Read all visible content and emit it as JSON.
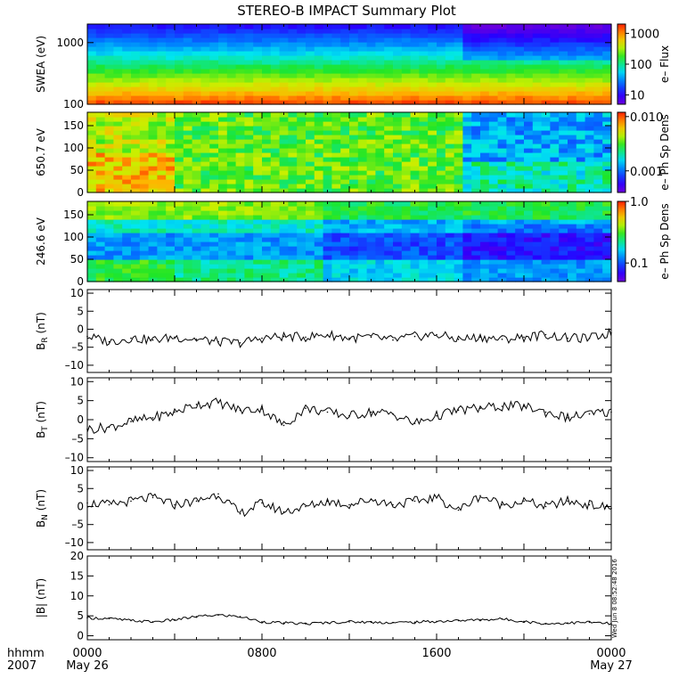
{
  "title": "STEREO-B IMPACT Summary Plot",
  "time_axis": {
    "labels": [
      {
        "hhmm": "0000",
        "date": "May 26",
        "frac": 0
      },
      {
        "hhmm": "0800",
        "date": "",
        "frac": 0.3333
      },
      {
        "hhmm": "1600",
        "date": "",
        "frac": 0.6667
      },
      {
        "hhmm": "0000",
        "date": "May 27",
        "frac": 1
      }
    ],
    "corner_top": "hhmm",
    "corner_bottom": "2007"
  },
  "footer_stamp": "Wed Jun  8 08:52:48 2016",
  "colors": {
    "axis": "#000000",
    "line": "#000000",
    "background": "#ffffff"
  },
  "chart_data": [
    {
      "type": "heatmap",
      "id": "swea",
      "ylabel": "SWEA (eV)",
      "yscale": "log",
      "ylim": [
        100,
        2000
      ],
      "yticks": [
        {
          "v": 100,
          "label": "100"
        },
        {
          "v": 1000,
          "label": "1000"
        }
      ],
      "colorbar": {
        "label": "e– Flux",
        "scale": "log",
        "range": [
          5,
          2000
        ],
        "ticks": [
          {
            "v": 10,
            "label": "10"
          },
          {
            "v": 100,
            "label": "100"
          },
          {
            "v": 1000,
            "label": "1000"
          }
        ]
      },
      "description_values": {
        "energy_log_profile": [
          [
            100,
            1500
          ],
          [
            200,
            1200
          ],
          [
            400,
            300
          ],
          [
            700,
            90
          ],
          [
            1000,
            35
          ],
          [
            1500,
            12
          ],
          [
            2000,
            7
          ]
        ],
        "change_time_frac": 0.71
      }
    },
    {
      "type": "heatmap",
      "id": "pad650",
      "ylabel": "650.7 eV",
      "ylim": [
        0,
        180
      ],
      "yticks": [
        {
          "v": 0,
          "label": "0"
        },
        {
          "v": 50,
          "label": "50"
        },
        {
          "v": 100,
          "label": "100"
        },
        {
          "v": 150,
          "label": "150"
        }
      ],
      "colorbar": {
        "label": "e– Ph Sp Dens",
        "scale": "log",
        "range": [
          0.0004,
          0.012
        ],
        "ticks": [
          {
            "v": 0.001,
            "label": "0.001"
          },
          {
            "v": 0.01,
            "label": "0.010"
          }
        ]
      },
      "description_values": {
        "change_time_frac": 0.71
      }
    },
    {
      "type": "heatmap",
      "id": "pad246",
      "ylabel": "246.6 eV",
      "ylim": [
        0,
        180
      ],
      "yticks": [
        {
          "v": 0,
          "label": "0"
        },
        {
          "v": 50,
          "label": "50"
        },
        {
          "v": 100,
          "label": "100"
        },
        {
          "v": 150,
          "label": "150"
        }
      ],
      "colorbar": {
        "label": "e– Ph Sp Dens",
        "scale": "log",
        "range": [
          0.05,
          1.0
        ],
        "ticks": [
          {
            "v": 0.1,
            "label": "0.1"
          },
          {
            "v": 1.0,
            "label": "1.0"
          }
        ]
      },
      "description_values": {
        "change_time_frac": 0.71
      }
    },
    {
      "type": "line",
      "id": "br",
      "ylabel": "B",
      "ysub": "R",
      "yunit": " (nT)",
      "ylim": [
        -12,
        11
      ],
      "yticks": [
        {
          "v": -10,
          "label": "–10"
        },
        {
          "v": -5,
          "label": "–5"
        },
        {
          "v": 0,
          "label": "0"
        },
        {
          "v": 5,
          "label": "5"
        },
        {
          "v": 10,
          "label": "10"
        }
      ],
      "x": [
        0,
        1,
        2,
        3,
        4,
        5,
        6,
        7,
        8,
        9,
        10,
        11,
        12,
        13,
        14,
        15,
        16,
        17,
        18,
        19,
        20,
        21,
        22,
        23,
        24
      ],
      "y": [
        -2.0,
        -3.5,
        -2.5,
        -3.0,
        -2.2,
        -2.8,
        -3.5,
        -3.8,
        -2.5,
        -2.0,
        -2.2,
        -1.5,
        -2.5,
        -2.2,
        -3.0,
        -2.0,
        -1.5,
        -2.8,
        -2.2,
        -2.8,
        -2.2,
        -1.5,
        -2.5,
        -2.5,
        -1.0
      ]
    },
    {
      "type": "line",
      "id": "bt",
      "ylabel": "B",
      "ysub": "T",
      "yunit": " (nT)",
      "ylim": [
        -11,
        11
      ],
      "yticks": [
        {
          "v": -10,
          "label": "–10"
        },
        {
          "v": -5,
          "label": "–5"
        },
        {
          "v": 0,
          "label": "0"
        },
        {
          "v": 5,
          "label": "5"
        },
        {
          "v": 10,
          "label": "10"
        }
      ],
      "x": [
        0,
        1,
        2,
        3,
        4,
        5,
        6,
        7,
        8,
        9,
        10,
        11,
        12,
        13,
        14,
        15,
        16,
        17,
        18,
        19,
        20,
        21,
        22,
        23,
        24
      ],
      "y": [
        -2.5,
        -2.0,
        -0.5,
        0.5,
        2.0,
        4.0,
        4.5,
        2.5,
        2.8,
        -1.5,
        3.0,
        2.0,
        1.0,
        2.0,
        1.5,
        -1.0,
        1.0,
        2.5,
        3.0,
        3.5,
        3.5,
        2.0,
        0.5,
        1.5,
        2.0
      ]
    },
    {
      "type": "line",
      "id": "bn",
      "ylabel": "B",
      "ysub": "N",
      "yunit": " (nT)",
      "ylim": [
        -12,
        11
      ],
      "yticks": [
        {
          "v": -10,
          "label": "–10"
        },
        {
          "v": -5,
          "label": "–5"
        },
        {
          "v": 0,
          "label": "0"
        },
        {
          "v": 5,
          "label": "5"
        },
        {
          "v": 10,
          "label": "10"
        }
      ],
      "x": [
        0,
        1,
        2,
        3,
        4,
        5,
        6,
        7,
        8,
        9,
        10,
        11,
        12,
        13,
        14,
        15,
        16,
        17,
        18,
        19,
        20,
        21,
        22,
        23,
        24
      ],
      "y": [
        1.0,
        0.5,
        1.5,
        2.5,
        0.5,
        1.5,
        3.5,
        -2.0,
        1.0,
        -1.5,
        0.0,
        1.5,
        0.5,
        2.0,
        0.5,
        1.5,
        2.5,
        -1.0,
        3.0,
        0.5,
        1.5,
        0.0,
        1.5,
        0.5,
        -0.5
      ]
    },
    {
      "type": "line",
      "id": "bmag",
      "ylabel": "|B| (nT)",
      "ylim": [
        -1,
        20
      ],
      "yticks": [
        {
          "v": 0,
          "label": "0"
        },
        {
          "v": 5,
          "label": "5"
        },
        {
          "v": 10,
          "label": "10"
        },
        {
          "v": 15,
          "label": "15"
        },
        {
          "v": 20,
          "label": "20"
        }
      ],
      "x": [
        0,
        1,
        2,
        3,
        4,
        5,
        6,
        7,
        8,
        9,
        10,
        11,
        12,
        13,
        14,
        15,
        16,
        17,
        18,
        19,
        20,
        21,
        22,
        23,
        24
      ],
      "y": [
        4.5,
        4.3,
        3.8,
        3.5,
        4.0,
        4.8,
        5.2,
        4.8,
        3.5,
        3.2,
        3.0,
        3.3,
        3.5,
        3.4,
        3.3,
        3.4,
        3.6,
        3.8,
        4.0,
        4.2,
        3.6,
        3.0,
        3.2,
        3.4,
        3.0
      ]
    }
  ]
}
